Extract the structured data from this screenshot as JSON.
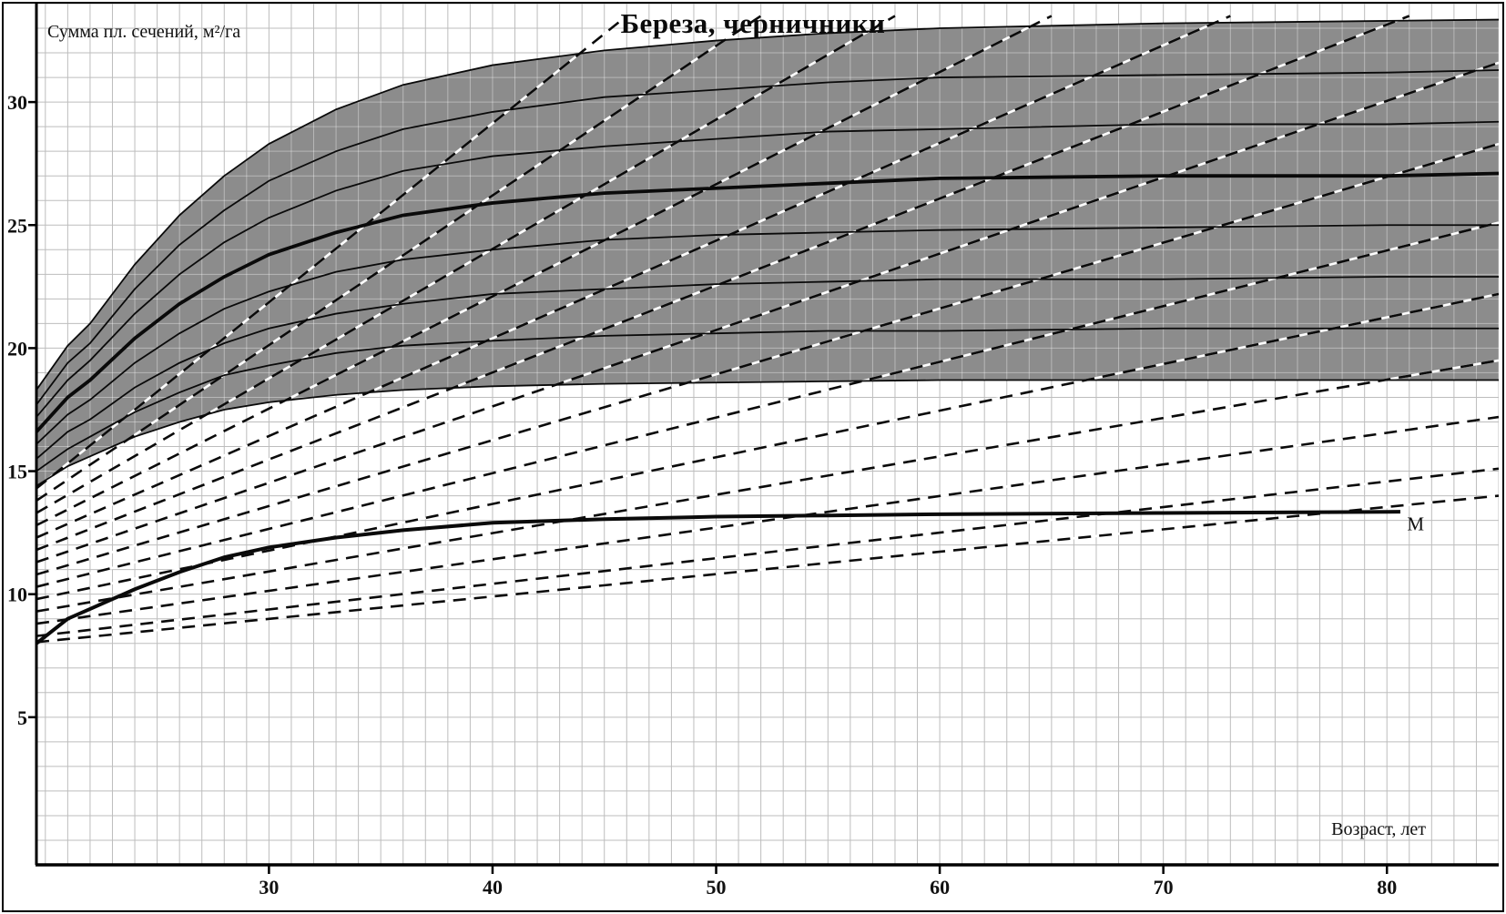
{
  "chart_data": {
    "type": "line",
    "title": "Береза, черничники",
    "ylabel": "Сумма пл. сечений, м²/га",
    "xlabel": "Возраст, лет",
    "xlim": [
      19.6,
      85
    ],
    "ylim": [
      -1,
      34
    ],
    "x_ticks": [
      30,
      40,
      50,
      60,
      70,
      80
    ],
    "y_ticks": [
      5,
      10,
      15,
      20,
      25,
      30
    ],
    "grid": {
      "x_step": 1,
      "y_step": 1,
      "color": "#bdbdbd",
      "color_in_band": "rgba(255,255,255,0.38)"
    },
    "x_common": [
      19.6,
      21,
      22,
      24,
      26,
      28,
      30,
      33,
      36,
      40,
      45,
      50,
      55,
      60,
      70,
      80,
      85
    ],
    "band": {
      "fill": "#8c8c8c",
      "upper": [
        18.3,
        20.1,
        21.0,
        23.4,
        25.4,
        27.0,
        28.3,
        29.7,
        30.7,
        31.5,
        32.1,
        32.5,
        32.8,
        33.0,
        33.2,
        33.3,
        33.35
      ],
      "lower": [
        14.4,
        15.2,
        15.6,
        16.4,
        17.0,
        17.5,
        17.8,
        18.1,
        18.3,
        18.45,
        18.55,
        18.6,
        18.65,
        18.7,
        18.7,
        18.7,
        18.7
      ]
    },
    "solid_series": [
      {
        "name": "band-lower-curve",
        "bold": false,
        "y": [
          14.4,
          15.2,
          15.6,
          16.4,
          17.0,
          17.5,
          17.8,
          18.1,
          18.3,
          18.45,
          18.55,
          18.6,
          18.65,
          18.7,
          18.7,
          18.7,
          18.7
        ]
      },
      {
        "name": "growth-curve-1",
        "bold": false,
        "y": [
          15.0,
          15.9,
          16.4,
          17.4,
          18.2,
          18.9,
          19.3,
          19.8,
          20.1,
          20.3,
          20.5,
          20.6,
          20.7,
          20.7,
          20.8,
          20.8,
          20.8
        ]
      },
      {
        "name": "growth-curve-2",
        "bold": false,
        "y": [
          15.5,
          16.6,
          17.1,
          18.4,
          19.4,
          20.2,
          20.8,
          21.4,
          21.8,
          22.2,
          22.4,
          22.6,
          22.7,
          22.8,
          22.8,
          22.9,
          22.9
        ]
      },
      {
        "name": "growth-curve-3",
        "bold": false,
        "y": [
          16.1,
          17.3,
          17.9,
          19.4,
          20.6,
          21.6,
          22.3,
          23.1,
          23.6,
          24.0,
          24.4,
          24.6,
          24.7,
          24.8,
          24.9,
          25.0,
          25.0
        ]
      },
      {
        "name": "growth-curve-4-bold",
        "bold": true,
        "y": [
          16.6,
          18.0,
          18.7,
          20.4,
          21.8,
          22.9,
          23.8,
          24.7,
          25.4,
          25.9,
          26.3,
          26.5,
          26.7,
          26.9,
          27.0,
          27.0,
          27.1
        ]
      },
      {
        "name": "growth-curve-5",
        "bold": false,
        "y": [
          17.2,
          18.7,
          19.5,
          21.4,
          23.0,
          24.3,
          25.3,
          26.4,
          27.2,
          27.8,
          28.2,
          28.5,
          28.8,
          28.9,
          29.1,
          29.1,
          29.2
        ]
      },
      {
        "name": "growth-curve-6",
        "bold": false,
        "y": [
          17.7,
          19.4,
          20.2,
          22.4,
          24.2,
          25.6,
          26.8,
          28.0,
          28.9,
          29.6,
          30.2,
          30.5,
          30.8,
          31.0,
          31.1,
          31.2,
          31.3
        ]
      },
      {
        "name": "band-upper-curve",
        "bold": false,
        "y": [
          18.3,
          20.1,
          21.0,
          23.4,
          25.4,
          27.0,
          28.3,
          29.7,
          30.7,
          31.5,
          32.1,
          32.5,
          32.8,
          33.0,
          33.2,
          33.3,
          33.35
        ]
      }
    ],
    "dashed_lines": [
      [
        19.6,
        14.3,
        46,
        33.5
      ],
      [
        19.6,
        13.8,
        52,
        33.5
      ],
      [
        19.6,
        13.3,
        58,
        33.5
      ],
      [
        19.6,
        12.8,
        65,
        33.5
      ],
      [
        19.6,
        12.3,
        73,
        33.5
      ],
      [
        19.6,
        11.8,
        81,
        33.5
      ],
      [
        19.6,
        11.3,
        85,
        31.6
      ],
      [
        19.6,
        10.8,
        85,
        28.3
      ],
      [
        19.6,
        10.3,
        85,
        25.1
      ],
      [
        19.6,
        9.8,
        85,
        22.2
      ],
      [
        19.6,
        9.3,
        85,
        19.5
      ],
      [
        19.6,
        8.8,
        85,
        17.2
      ],
      [
        19.6,
        8.3,
        85,
        15.1
      ],
      [
        19.6,
        8.05,
        85,
        14.0
      ]
    ],
    "m_curve": {
      "label": "М",
      "label_pos": [
        80.9,
        12.6
      ],
      "x": [
        19.6,
        21,
        22,
        24,
        26,
        28,
        30,
        33,
        36,
        40,
        45,
        50,
        55,
        60,
        70,
        80.6
      ],
      "y": [
        8.0,
        9.0,
        9.4,
        10.2,
        10.9,
        11.5,
        11.9,
        12.3,
        12.6,
        12.9,
        13.05,
        13.15,
        13.2,
        13.25,
        13.3,
        13.35
      ]
    },
    "colors": {
      "curve": "#0a0a0a",
      "axis": "#000000",
      "frame": "#000000",
      "background": "#ffffff"
    }
  }
}
